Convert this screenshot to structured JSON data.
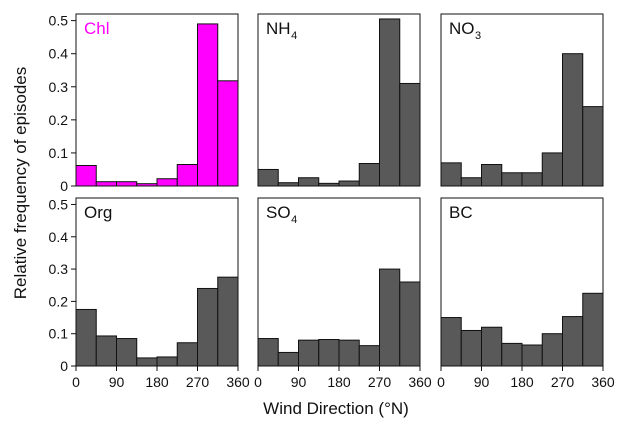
{
  "chart_data": {
    "type": "bar",
    "xlabel": "Wind Direction (°N)",
    "ylabel": "Relative frequency of episodes",
    "x_ticks": [
      "0",
      "90",
      "180",
      "270",
      "360"
    ],
    "x_tick_values": [
      0,
      90,
      180,
      270,
      360
    ],
    "y_ticks": [
      "0",
      "0.1",
      "0.2",
      "0.3",
      "0.4",
      "0.5"
    ],
    "y_tick_values": [
      0,
      0.1,
      0.2,
      0.3,
      0.4,
      0.5
    ],
    "xlim": [
      0,
      360
    ],
    "ylim": [
      0,
      0.52
    ],
    "bin_edges": [
      0,
      45,
      90,
      135,
      180,
      225,
      270,
      315,
      360
    ],
    "grid": false,
    "panels": [
      {
        "name": "Chl",
        "subscript": "",
        "color": "#ff00ff",
        "label_color": "#ff00ff",
        "values": [
          0.062,
          0.013,
          0.013,
          0.007,
          0.022,
          0.065,
          0.49,
          0.318
        ]
      },
      {
        "name": "NH",
        "subscript": "4",
        "color": "#595959",
        "label_color": "#111111",
        "values": [
          0.05,
          0.01,
          0.025,
          0.008,
          0.015,
          0.068,
          0.505,
          0.31
        ]
      },
      {
        "name": "NO",
        "subscript": "3",
        "color": "#595959",
        "label_color": "#111111",
        "values": [
          0.07,
          0.025,
          0.065,
          0.04,
          0.04,
          0.1,
          0.4,
          0.24
        ]
      },
      {
        "name": "Org",
        "subscript": "",
        "color": "#595959",
        "label_color": "#111111",
        "values": [
          0.175,
          0.093,
          0.085,
          0.025,
          0.028,
          0.072,
          0.24,
          0.275
        ]
      },
      {
        "name": "SO",
        "subscript": "4",
        "color": "#595959",
        "label_color": "#111111",
        "values": [
          0.085,
          0.042,
          0.08,
          0.082,
          0.08,
          0.063,
          0.3,
          0.26
        ]
      },
      {
        "name": "BC",
        "subscript": "",
        "color": "#595959",
        "label_color": "#111111",
        "values": [
          0.15,
          0.11,
          0.12,
          0.07,
          0.065,
          0.1,
          0.153,
          0.225
        ]
      }
    ]
  }
}
